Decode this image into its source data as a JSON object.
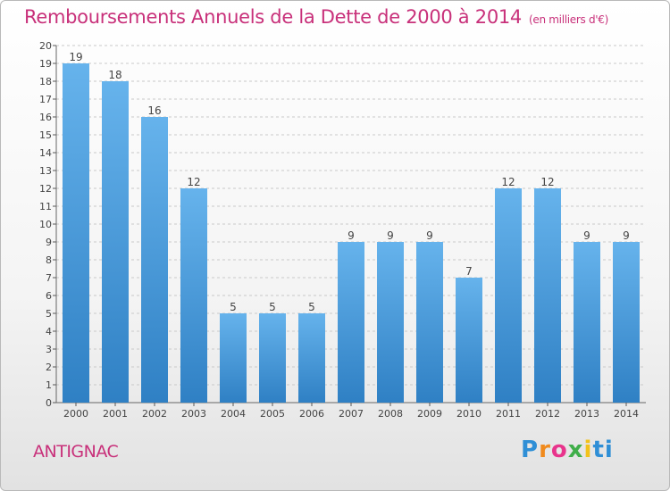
{
  "header": {
    "title": "Remboursements Annuels de la Dette de 2000 à 2014",
    "subtitle": "(en milliers d'€)"
  },
  "footer": {
    "commune": "ANTIGNAC",
    "logo": "Proxiti",
    "logo_colors": [
      "#2f8fd6",
      "#f08a1c",
      "#e8348c",
      "#3fae49",
      "#f2c21b",
      "#2f8fd6"
    ]
  },
  "chart_data": {
    "type": "bar",
    "title": "Remboursements Annuels de la Dette de 2000 à 2014",
    "xlabel": "",
    "ylabel": "",
    "categories": [
      "2000",
      "2001",
      "2002",
      "2003",
      "2004",
      "2005",
      "2006",
      "2007",
      "2008",
      "2009",
      "2010",
      "2011",
      "2012",
      "2013",
      "2014"
    ],
    "values": [
      19,
      18,
      16,
      12,
      5,
      5,
      5,
      9,
      9,
      9,
      7,
      12,
      12,
      9,
      9
    ],
    "ylim": [
      0,
      20
    ],
    "yticks": [
      "0",
      "1",
      "2",
      "3",
      "4",
      "5",
      "6",
      "7",
      "8",
      "9",
      "10",
      "11",
      "12",
      "13",
      "14",
      "15",
      "16",
      "17",
      "18",
      "19",
      "20"
    ],
    "bar_color": "#3d93d8",
    "bar_color_light": "#66b3ec",
    "grid": true
  }
}
